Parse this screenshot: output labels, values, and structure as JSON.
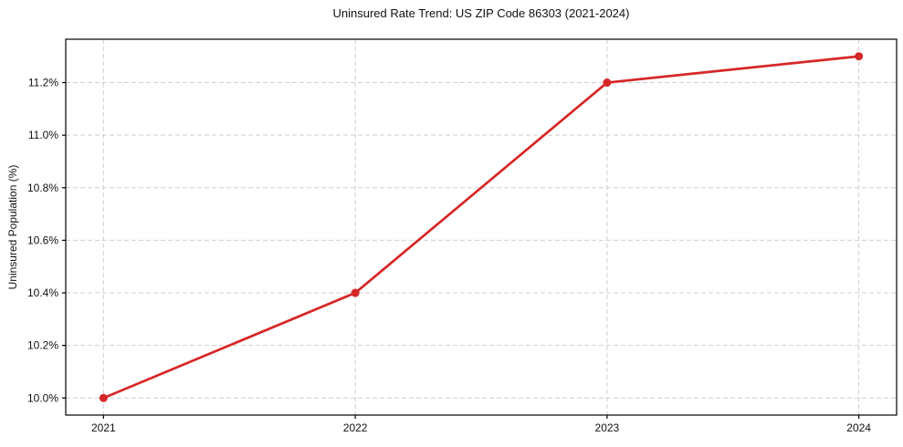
{
  "chart_data": {
    "type": "line",
    "title": "Uninsured Rate Trend: US ZIP Code 86303 (2021-2024)",
    "xlabel": "",
    "ylabel": "Uninsured Population (%)",
    "x": [
      2021,
      2022,
      2023,
      2024
    ],
    "values": [
      10.0,
      10.4,
      11.2,
      11.3
    ],
    "x_tick_labels": [
      "2021",
      "2022",
      "2023",
      "2024"
    ],
    "y_ticks": [
      10.0,
      10.2,
      10.4,
      10.6,
      10.8,
      11.0,
      11.2
    ],
    "y_tick_labels": [
      "10.0%",
      "10.2%",
      "10.4%",
      "10.6%",
      "10.8%",
      "11.0%",
      "11.2%"
    ],
    "xlim": [
      2020.85,
      2024.15
    ],
    "ylim": [
      9.935,
      11.365
    ],
    "grid": true,
    "grid_style": "dashed",
    "legend": false,
    "line_color": "#d62728",
    "marker": "circle",
    "grid_color": "#cfcfcf",
    "axis_color": "#000000",
    "text_color": "#111111",
    "background": "#ffffff"
  }
}
